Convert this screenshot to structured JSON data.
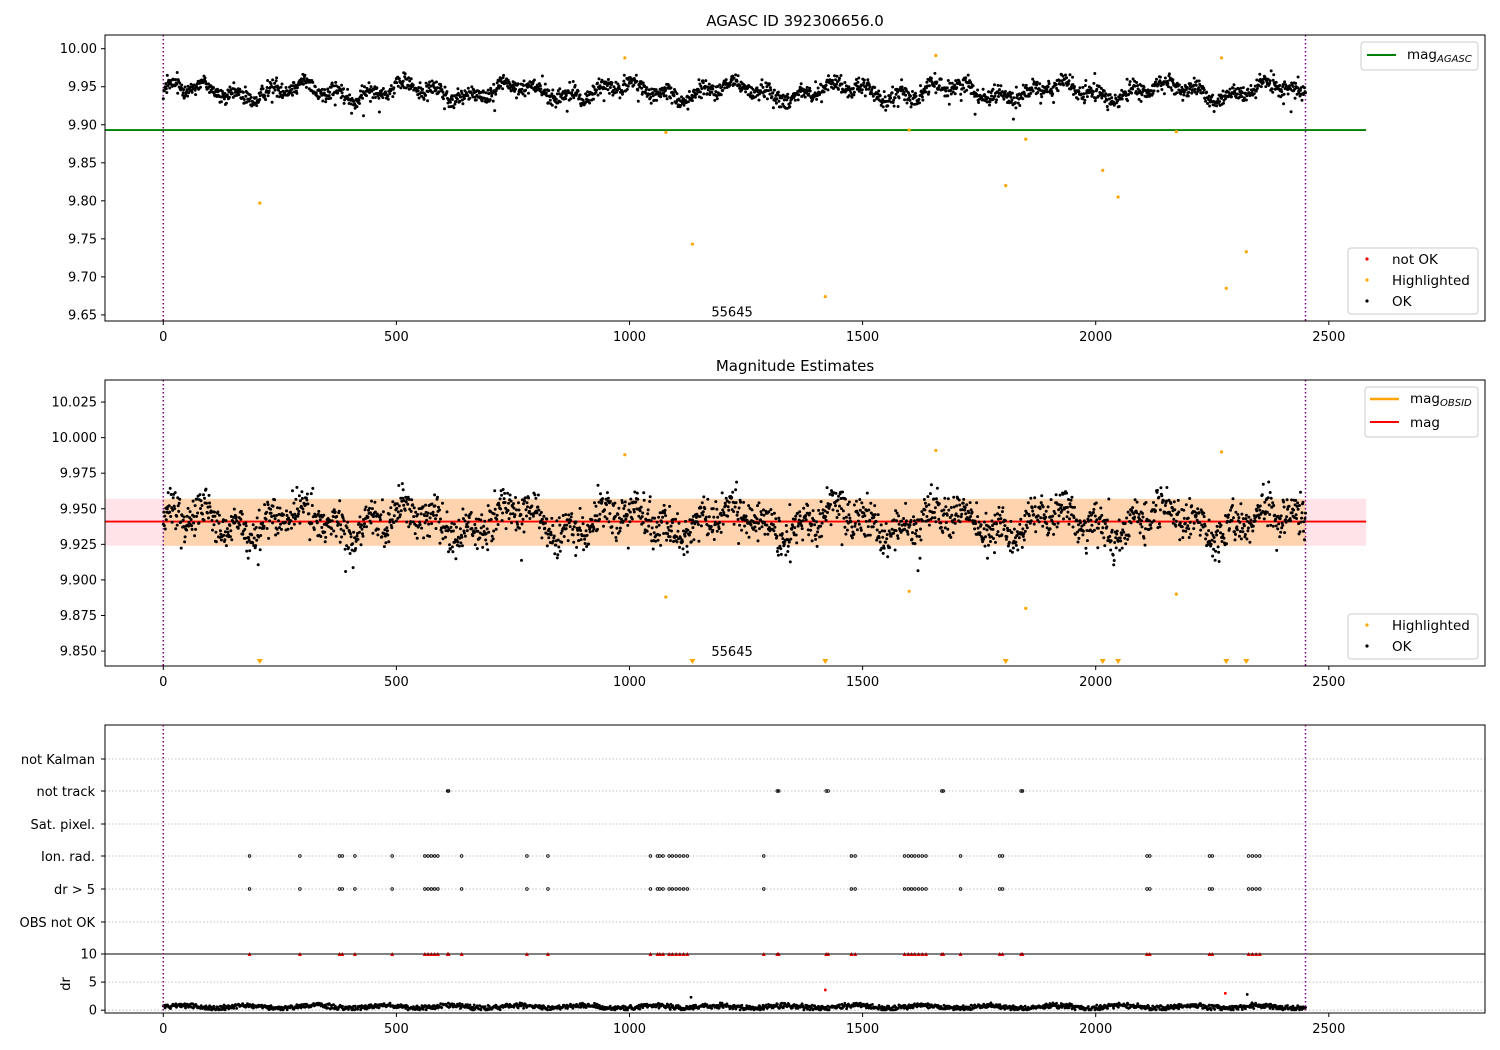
{
  "chart_data": [
    {
      "type": "scatter",
      "title": "AGASC ID 392306656.0",
      "xlim": [
        -125,
        2835
      ],
      "ylim": [
        9.642,
        10.018
      ],
      "x_ticks": [
        0,
        500,
        1000,
        1500,
        2000,
        2500
      ],
      "y_ticks": [
        9.65,
        9.7,
        9.75,
        9.8,
        9.85,
        9.9,
        9.95,
        10.0
      ],
      "y_tick_labels": [
        "9.65",
        "9.70",
        "9.75",
        "9.80",
        "9.85",
        "9.90",
        "9.95",
        "10.00"
      ],
      "vlines": [
        0,
        2450
      ],
      "hline": {
        "y": 9.893,
        "x_range": [
          -125,
          2580
        ],
        "color": "#008000"
      },
      "annotation": {
        "text": "55645",
        "x": 1220,
        "y": 9.653
      },
      "ok_band": {
        "center": 9.944,
        "halfwidth": 0.016,
        "excursion": 0.05,
        "x_range": [
          0,
          2450
        ],
        "count": 2300,
        "color": "#000000"
      },
      "highlighted": {
        "color": "#FFA500",
        "x": [
          207,
          990,
          1078,
          1135,
          1420,
          1600,
          1657,
          1807,
          1850,
          2015,
          2048,
          2173,
          2270,
          2280,
          2323
        ],
        "y": [
          9.797,
          9.988,
          9.89,
          9.743,
          9.674,
          9.893,
          9.991,
          9.82,
          9.881,
          9.84,
          9.805,
          9.891,
          9.988,
          9.685,
          9.733
        ]
      },
      "legends": [
        {
          "position": "upper-right",
          "items": [
            {
              "label": "mag",
              "sub": "AGASC",
              "marker": "line",
              "color": "#008000"
            }
          ]
        },
        {
          "position": "lower-right",
          "items": [
            {
              "label": "not OK",
              "marker": "dot",
              "color": "#FF0000"
            },
            {
              "label": "Highlighted",
              "marker": "dot",
              "color": "#FFA500"
            },
            {
              "label": "OK",
              "marker": "dot",
              "color": "#000000"
            }
          ]
        }
      ]
    },
    {
      "type": "scatter",
      "title": "Magnitude Estimates",
      "xlim": [
        -125,
        2835
      ],
      "ylim": [
        9.8395,
        10.0405
      ],
      "x_ticks": [
        0,
        500,
        1000,
        1500,
        2000,
        2500
      ],
      "y_ticks": [
        9.85,
        9.875,
        9.9,
        9.925,
        9.95,
        9.975,
        10.0,
        10.025
      ],
      "y_tick_labels": [
        "9.850",
        "9.875",
        "9.900",
        "9.925",
        "9.950",
        "9.975",
        "10.000",
        "10.025"
      ],
      "vlines": [
        0,
        2450
      ],
      "mean_line": {
        "y": 9.941,
        "x_range": [
          -125,
          2580
        ],
        "color": "#FF0000"
      },
      "bands": [
        {
          "y_range": [
            9.924,
            9.957
          ],
          "x_range": [
            -125,
            2580
          ],
          "color": "#FFC0CB"
        },
        {
          "y_range": [
            9.924,
            9.957
          ],
          "x_range": [
            0,
            2450
          ],
          "color": "#FFA500"
        }
      ],
      "annotation": {
        "text": "55645",
        "x": 1220,
        "y": 9.8495
      },
      "ok_band": {
        "center": 9.941,
        "halfwidth": 0.02,
        "excursion": 0.04,
        "x_range": [
          0,
          2450
        ],
        "count": 2300,
        "color": "#000000"
      },
      "highlighted": {
        "color": "#FFA500",
        "x": [
          990,
          1078,
          1600,
          1657,
          1850,
          2173,
          2270
        ],
        "y": [
          9.988,
          9.888,
          9.892,
          9.991,
          9.88,
          9.89,
          9.99
        ]
      },
      "below_limit_markers": {
        "color": "#FFA500",
        "x": [
          207,
          1135,
          1420,
          1807,
          2015,
          2048,
          2280,
          2323
        ]
      },
      "legends": [
        {
          "position": "upper-right",
          "items": [
            {
              "label": "mag",
              "sub": "OBSID",
              "marker": "line",
              "color": "#FFA500"
            },
            {
              "label": "mag",
              "marker": "line",
              "color": "#FF0000"
            }
          ]
        },
        {
          "position": "lower-right",
          "items": [
            {
              "label": "Highlighted",
              "marker": "dot",
              "color": "#FFA500"
            },
            {
              "label": "OK",
              "marker": "dot",
              "color": "#000000"
            }
          ]
        }
      ]
    },
    {
      "type": "scatter",
      "title": "",
      "xlim": [
        -125,
        2835
      ],
      "x_ticks": [
        0,
        500,
        1000,
        1500,
        2000,
        2500
      ],
      "vlines": [
        0,
        2450
      ],
      "flag_rows": [
        "not Kalman",
        "not track",
        "Sat. pixel.",
        "Ion. rad.",
        "dr > 5",
        "OBS not OK"
      ],
      "flag_events": {
        "not track": [
          610,
          612,
          1317,
          1320,
          1422,
          1426,
          1670,
          1673,
          1840,
          1843
        ],
        "Ion. rad.": [
          185,
          293,
          378,
          384,
          411,
          491,
          561,
          568,
          575,
          582,
          589,
          640,
          780,
          825,
          1045,
          1060,
          1065,
          1072,
          1085,
          1092,
          1100,
          1108,
          1116,
          1124,
          1288,
          1476,
          1484,
          1590,
          1598,
          1605,
          1612,
          1620,
          1628,
          1636,
          1710,
          1794,
          1800,
          2110,
          2116,
          2244,
          2250,
          2328,
          2336,
          2344,
          2352
        ],
        "dr > 5": [
          185,
          293,
          378,
          384,
          411,
          491,
          561,
          568,
          575,
          582,
          589,
          640,
          780,
          825,
          1045,
          1060,
          1065,
          1072,
          1085,
          1092,
          1100,
          1108,
          1116,
          1124,
          1288,
          1476,
          1484,
          1590,
          1598,
          1605,
          1612,
          1620,
          1628,
          1636,
          1710,
          1794,
          1800,
          2110,
          2116,
          2244,
          2250,
          2328,
          2336,
          2344,
          2352
        ]
      },
      "dr_panel": {
        "ylabel": "dr",
        "ylim": [
          -0.5,
          10
        ],
        "y_ticks": [
          0,
          5,
          10
        ],
        "clip_value": 10,
        "ok_band": {
          "center": 0.6,
          "halfwidth": 0.55,
          "count": 1900
        },
        "outliers": {
          "x": [
            1132,
            1420,
            2278,
            2325
          ],
          "y": [
            2.3,
            3.6,
            3.0,
            2.8
          ],
          "colors": [
            "#000000",
            "#FF0000",
            "#FF0000",
            "#000000"
          ]
        },
        "clipped_x": [
          185,
          293,
          378,
          384,
          411,
          491,
          561,
          568,
          575,
          582,
          589,
          610,
          612,
          640,
          780,
          825,
          1045,
          1060,
          1065,
          1072,
          1085,
          1092,
          1100,
          1108,
          1116,
          1124,
          1288,
          1317,
          1320,
          1422,
          1426,
          1476,
          1484,
          1590,
          1598,
          1605,
          1612,
          1620,
          1628,
          1636,
          1670,
          1673,
          1710,
          1794,
          1800,
          1840,
          1843,
          2110,
          2116,
          2244,
          2250,
          2328,
          2336,
          2344,
          2352
        ],
        "clipped_color": "#FF0000"
      }
    }
  ]
}
